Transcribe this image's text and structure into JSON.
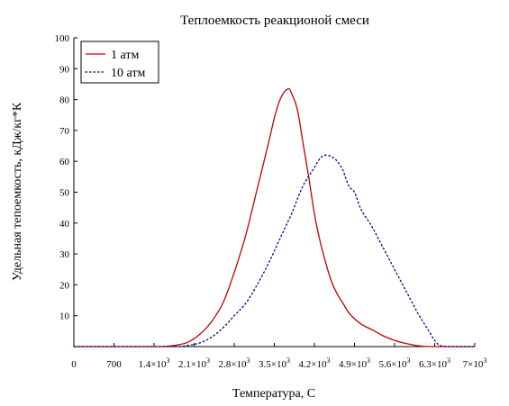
{
  "chart_data": {
    "type": "line",
    "title": "Теплоемкость реакционой смеси",
    "xlabel": "Температура, С",
    "ylabel": "Удельная тепоемкость, кДж/кг*К",
    "xlim": [
      0,
      7000
    ],
    "ylim": [
      0,
      100
    ],
    "x_ticks": [
      {
        "value": 0,
        "label": "0",
        "sup": ""
      },
      {
        "value": 700,
        "label": "700",
        "sup": ""
      },
      {
        "value": 1400,
        "label": "1.4×10",
        "sup": "3"
      },
      {
        "value": 2100,
        "label": "2.1×10",
        "sup": "3"
      },
      {
        "value": 2800,
        "label": "2.8×10",
        "sup": "3"
      },
      {
        "value": 3500,
        "label": "3.5×10",
        "sup": "3"
      },
      {
        "value": 4200,
        "label": "4.2×10",
        "sup": "3"
      },
      {
        "value": 4900,
        "label": "4.9×10",
        "sup": "3"
      },
      {
        "value": 5600,
        "label": "5.6×10",
        "sup": "3"
      },
      {
        "value": 6300,
        "label": "6.3×10",
        "sup": "3"
      },
      {
        "value": 7000,
        "label": "7×10",
        "sup": "3"
      }
    ],
    "y_ticks": [
      {
        "value": 0,
        "label": ""
      },
      {
        "value": 10,
        "label": "10"
      },
      {
        "value": 20,
        "label": "20"
      },
      {
        "value": 30,
        "label": "30"
      },
      {
        "value": 40,
        "label": "40"
      },
      {
        "value": 50,
        "label": "50"
      },
      {
        "value": 60,
        "label": "60"
      },
      {
        "value": 70,
        "label": "70"
      },
      {
        "value": 80,
        "label": "80"
      },
      {
        "value": 90,
        "label": "90"
      },
      {
        "value": 100,
        "label": "100"
      }
    ],
    "grid": false,
    "legend_position": "top-left",
    "series": [
      {
        "name": "1 атм",
        "color": "#c00000",
        "style": "solid",
        "x": [
          0,
          1000,
          1500,
          1800,
          2000,
          2200,
          2400,
          2600,
          2800,
          3000,
          3200,
          3400,
          3500,
          3600,
          3700,
          3760,
          3800,
          3900,
          4000,
          4100,
          4200,
          4300,
          4400,
          4500,
          4600,
          4700,
          4800,
          5000,
          5200,
          5400,
          5600,
          5800,
          6000,
          6200,
          6400,
          6600,
          7000
        ],
        "y": [
          0,
          0,
          0,
          0.5,
          1.5,
          4,
          8,
          14,
          24,
          36,
          51,
          66,
          74,
          80,
          83,
          83.5,
          82,
          77,
          66,
          55,
          43,
          34,
          27,
          21,
          17,
          14,
          11,
          7.5,
          5.5,
          3.5,
          2,
          1,
          0.3,
          0,
          0,
          0,
          0
        ]
      },
      {
        "name": "10 атм",
        "color": "#00008b",
        "style": "dotted",
        "x": [
          0,
          1000,
          1500,
          1800,
          2000,
          2200,
          2400,
          2600,
          2800,
          3000,
          3200,
          3400,
          3600,
          3800,
          4000,
          4200,
          4300,
          4400,
          4500,
          4600,
          4700,
          4800,
          4900,
          5000,
          5200,
          5400,
          5600,
          5800,
          6000,
          6200,
          6300,
          6400,
          6600,
          7000
        ],
        "y": [
          0,
          0,
          0,
          0,
          0.4,
          1.2,
          3,
          6,
          10,
          14,
          20,
          27,
          35,
          43,
          52,
          58,
          61,
          62,
          61.5,
          60,
          57,
          52,
          50,
          45,
          39,
          32,
          25,
          18,
          11,
          5,
          2,
          0.3,
          0,
          0
        ]
      }
    ]
  }
}
